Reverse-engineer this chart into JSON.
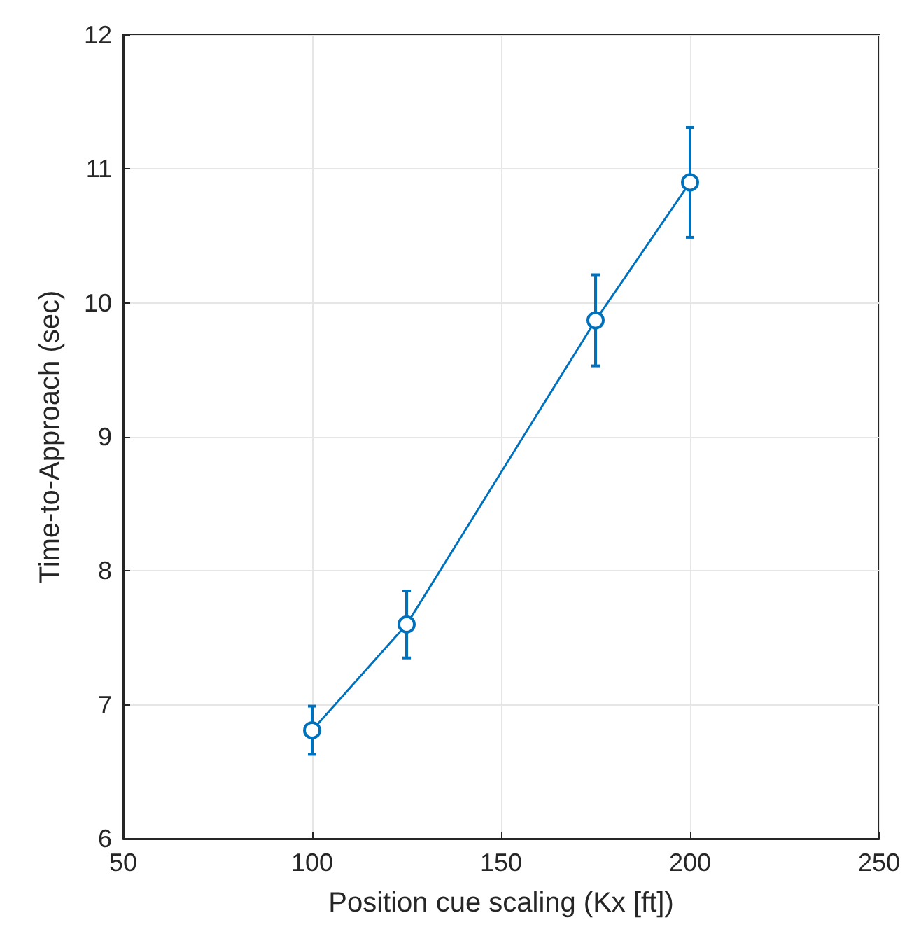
{
  "chart_data": {
    "type": "line",
    "xlabel": "Position cue scaling (Kx [ft])",
    "ylabel": "Time-to-Approach (sec)",
    "x": [
      100,
      125,
      175,
      200
    ],
    "series": [
      {
        "color": "#0072bd",
        "values": [
          6.81,
          7.6,
          9.87,
          10.9
        ],
        "errors": [
          0.18,
          0.25,
          0.34,
          0.41
        ]
      }
    ],
    "xlim": [
      50,
      250
    ],
    "xticks": [
      50,
      100,
      150,
      200,
      250
    ],
    "ylim": [
      6,
      12
    ],
    "yticks": [
      6,
      7,
      8,
      9,
      10,
      11,
      12
    ],
    "grid": true,
    "marker": "circle",
    "line_style": "solid"
  }
}
